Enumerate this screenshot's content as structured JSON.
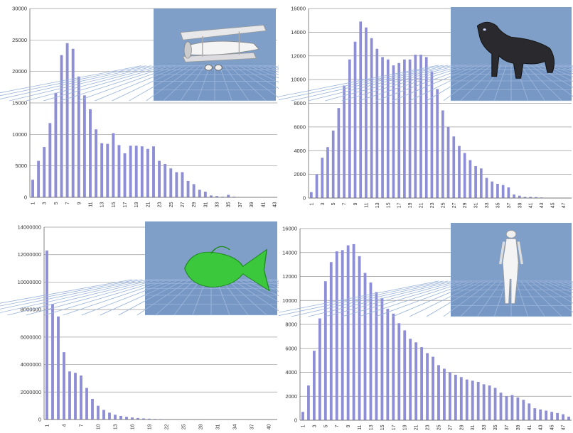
{
  "chart_data": [
    {
      "id": "chart-tl",
      "type": "bar",
      "x": [
        1,
        2,
        3,
        4,
        5,
        6,
        7,
        8,
        9,
        10,
        11,
        12,
        13,
        14,
        15,
        16,
        17,
        18,
        19,
        20,
        21,
        22,
        23,
        24,
        25,
        26,
        27,
        28,
        29,
        30,
        31,
        32,
        33,
        34,
        35,
        36,
        37,
        38,
        39,
        40,
        41,
        42,
        43
      ],
      "values": [
        2800,
        5800,
        8000,
        11800,
        16600,
        22600,
        24500,
        23600,
        19200,
        16200,
        14000,
        10800,
        8600,
        8500,
        10200,
        8300,
        7000,
        8200,
        8200,
        8100,
        7700,
        8100,
        5800,
        5300,
        4600,
        4000,
        4000,
        2600,
        2100,
        1200,
        900,
        300,
        200,
        100,
        400,
        100,
        50,
        30,
        20,
        10,
        10,
        5,
        5
      ],
      "x_tick_labels": [
        "1",
        "3",
        "5",
        "7",
        "9",
        "11",
        "13",
        "15",
        "17",
        "19",
        "21",
        "23",
        "25",
        "27",
        "29",
        "31",
        "33",
        "35",
        "37",
        "39",
        "41",
        "43"
      ],
      "y_ticks": [
        0,
        5000,
        10000,
        15000,
        20000,
        25000,
        30000
      ],
      "ylim": [
        0,
        30000
      ],
      "bar_color": "#8d8ed6",
      "inset": {
        "model": "biplane-model",
        "bg_color": "#7f9fc8"
      }
    },
    {
      "id": "chart-tr",
      "type": "bar",
      "x": [
        1,
        2,
        3,
        4,
        5,
        6,
        7,
        8,
        9,
        10,
        11,
        12,
        13,
        14,
        15,
        16,
        17,
        18,
        19,
        20,
        21,
        22,
        23,
        24,
        25,
        26,
        27,
        28,
        29,
        30,
        31,
        32,
        33,
        34,
        35,
        36,
        37,
        38,
        39,
        40,
        41,
        42,
        43,
        44,
        45,
        46,
        47,
        48
      ],
      "values": [
        500,
        2000,
        3400,
        4300,
        5700,
        7600,
        9500,
        11700,
        13200,
        14900,
        14400,
        13500,
        12600,
        11900,
        11700,
        11200,
        11400,
        11700,
        11700,
        12100,
        12100,
        11900,
        10700,
        9200,
        7400,
        6000,
        5200,
        4400,
        3800,
        3200,
        2700,
        2500,
        1700,
        1400,
        1200,
        1100,
        900,
        300,
        200,
        100,
        100,
        80,
        50,
        30,
        20,
        10,
        10,
        5
      ],
      "x_tick_labels": [
        "1",
        "3",
        "5",
        "7",
        "9",
        "11",
        "13",
        "15",
        "17",
        "19",
        "21",
        "23",
        "25",
        "27",
        "29",
        "31",
        "33",
        "35",
        "37",
        "39",
        "41",
        "43",
        "45",
        "47"
      ],
      "y_ticks": [
        0,
        2000,
        4000,
        6000,
        8000,
        10000,
        12000,
        14000,
        16000
      ],
      "ylim": [
        0,
        16000
      ],
      "bar_color": "#8d8ed6",
      "inset": {
        "model": "panther-model",
        "bg_color": "#7f9fc8"
      }
    },
    {
      "id": "chart-bl",
      "type": "bar",
      "x": [
        1,
        2,
        3,
        4,
        5,
        6,
        7,
        8,
        9,
        10,
        11,
        12,
        13,
        14,
        15,
        16,
        17,
        18,
        19,
        20,
        21,
        22,
        23,
        24,
        25,
        26,
        27,
        28,
        29,
        30,
        31,
        32,
        33,
        34,
        35,
        36,
        37,
        38,
        39,
        40,
        41
      ],
      "values": [
        12300000,
        8400000,
        7500000,
        4900000,
        3500000,
        3400000,
        3200000,
        2300000,
        1500000,
        1000000,
        700000,
        500000,
        350000,
        260000,
        200000,
        150000,
        110000,
        80000,
        60000,
        40000,
        30000,
        20000,
        15000,
        10000,
        8000,
        6000,
        5000,
        4000,
        3000,
        2000,
        2000,
        1000,
        1000,
        1000,
        1000,
        500,
        500,
        500,
        500,
        500,
        500
      ],
      "x_tick_labels": [
        "1",
        "4",
        "7",
        "10",
        "13",
        "16",
        "19",
        "22",
        "25",
        "28",
        "31",
        "34",
        "37",
        "40"
      ],
      "y_ticks": [
        0,
        2000000,
        4000000,
        6000000,
        8000000,
        10000000,
        12000000,
        14000000
      ],
      "ylim": [
        0,
        14000000
      ],
      "bar_color": "#8d8ed6",
      "inset": {
        "model": "fish-model",
        "bg_color": "#7f9fc8"
      }
    },
    {
      "id": "chart-br",
      "type": "bar",
      "x": [
        1,
        2,
        3,
        4,
        5,
        6,
        7,
        8,
        9,
        10,
        11,
        12,
        13,
        14,
        15,
        16,
        17,
        18,
        19,
        20,
        21,
        22,
        23,
        24,
        25,
        26,
        27,
        28,
        29,
        30,
        31,
        32,
        33,
        34,
        35,
        36,
        37,
        38,
        39,
        40,
        41,
        42,
        43,
        44,
        45,
        46,
        47,
        48
      ],
      "values": [
        700,
        2900,
        5800,
        8500,
        11600,
        13200,
        14100,
        14200,
        14600,
        14700,
        13700,
        12300,
        11500,
        10700,
        10200,
        9300,
        8900,
        8100,
        7500,
        6800,
        6500,
        6100,
        5600,
        5300,
        4600,
        4300,
        4000,
        3800,
        3600,
        3400,
        3300,
        3200,
        3000,
        2900,
        2700,
        2300,
        2000,
        2100,
        1900,
        1700,
        1400,
        1000,
        900,
        800,
        700,
        600,
        500,
        300
      ],
      "x_tick_labels": [
        "1",
        "3",
        "5",
        "7",
        "9",
        "11",
        "13",
        "15",
        "17",
        "19",
        "21",
        "23",
        "25",
        "27",
        "29",
        "31",
        "33",
        "35",
        "37",
        "39",
        "41",
        "43",
        "45",
        "47"
      ],
      "y_ticks": [
        0,
        2000,
        4000,
        6000,
        8000,
        10000,
        12000,
        14000,
        16000
      ],
      "ylim": [
        0,
        16000
      ],
      "bar_color": "#8d8ed6",
      "inset": {
        "model": "human-model",
        "bg_color": "#7f9fc8"
      }
    }
  ]
}
